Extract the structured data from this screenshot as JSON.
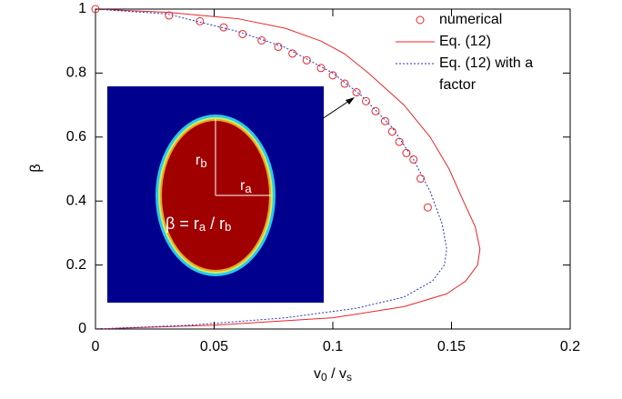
{
  "chart_data": {
    "type": "line",
    "xlabel": [
      "v",
      "0",
      " / v",
      "s"
    ],
    "ylabel": "β",
    "xlim": [
      0,
      0.2
    ],
    "xticks": [
      0,
      0.05,
      0.1,
      0.15,
      0.2
    ],
    "ylim": [
      0,
      1
    ],
    "yticks": [
      0,
      0.2,
      0.4,
      0.6,
      0.8,
      1
    ],
    "legend": "upper right",
    "series": [
      {
        "name": "numerical",
        "style": "markers",
        "color": "#e8262b",
        "x": [
          0,
          0.031,
          0.044,
          0.054,
          0.062,
          0.07,
          0.077,
          0.083,
          0.089,
          0.095,
          0.1,
          0.105,
          0.11,
          0.114,
          0.118,
          0.122,
          0.125,
          0.128,
          0.131,
          0.134,
          0.137,
          0.14
        ],
        "y": [
          1,
          0.98,
          0.962,
          0.943,
          0.922,
          0.902,
          0.882,
          0.861,
          0.84,
          0.816,
          0.793,
          0.767,
          0.74,
          0.712,
          0.681,
          0.65,
          0.617,
          0.585,
          0.55,
          0.53,
          0.47,
          0.38
        ]
      },
      {
        "name": "Eq. (12)",
        "style": "solid",
        "color": "#e8262b",
        "x": [
          0,
          0.03,
          0.06,
          0.08,
          0.095,
          0.105,
          0.115,
          0.13,
          0.141,
          0.149,
          0.155,
          0.16,
          0.162,
          0.161,
          0.156,
          0.148,
          0.13,
          0.1,
          0.05,
          0
        ],
        "y": [
          1,
          0.99,
          0.97,
          0.94,
          0.9,
          0.86,
          0.8,
          0.7,
          0.6,
          0.5,
          0.4,
          0.32,
          0.25,
          0.2,
          0.15,
          0.11,
          0.07,
          0.035,
          0.012,
          0
        ]
      },
      {
        "name": "Eq. (12) with a factor",
        "style": "dotted",
        "color": "#2233cc",
        "x": [
          0,
          0.03,
          0.06,
          0.08,
          0.1,
          0.112,
          0.125,
          0.134,
          0.141,
          0.146,
          0.148,
          0.147,
          0.142,
          0.13,
          0.11,
          0.08,
          0.04,
          0
        ],
        "y": [
          1,
          0.985,
          0.93,
          0.88,
          0.8,
          0.73,
          0.63,
          0.53,
          0.43,
          0.33,
          0.25,
          0.2,
          0.15,
          0.1,
          0.065,
          0.035,
          0.012,
          0
        ]
      }
    ],
    "inset": {
      "r_b": [
        "r",
        "b"
      ],
      "r_a": [
        "r",
        "a"
      ],
      "formula": [
        "β = r",
        "a",
        " / r",
        "b"
      ]
    }
  }
}
